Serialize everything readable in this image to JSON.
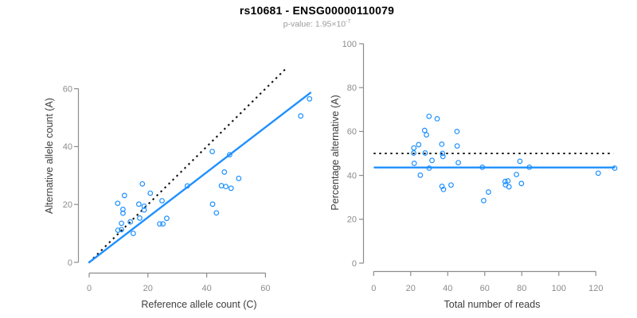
{
  "figure": {
    "title": "rs10681 - ENSG00000110079",
    "subtitle": {
      "prefix": "p-value: 1.95×10",
      "exponent": "-7"
    }
  },
  "colors": {
    "accent_blue": "#1E90FF",
    "dotted_black": "#111111",
    "axis_gray": "#8c8c8c",
    "tick_label_gray": "#8c8c8c",
    "axis_title_gray": "#3d3d3d",
    "subtitle_gray": "#9b9b9b"
  },
  "chart_data": [
    {
      "id": "allele-count-scatter",
      "type": "scatter",
      "xlabel": "Reference allele count (C)",
      "ylabel": "Alternative allele count (A)",
      "x_ticks": [
        0,
        20,
        40,
        60
      ],
      "y_ticks": [
        0,
        20,
        40,
        60
      ],
      "xlim": [
        0,
        76
      ],
      "ylim": [
        0,
        68
      ],
      "grid": false,
      "points": [
        [
          75.0,
          56.5
        ],
        [
          72.0,
          50.6
        ],
        [
          41.9,
          38.3
        ],
        [
          47.8,
          37.2
        ],
        [
          46.0,
          31.2
        ],
        [
          50.9,
          29.0
        ],
        [
          45.0,
          26.5
        ],
        [
          46.5,
          26.2
        ],
        [
          48.3,
          25.6
        ],
        [
          33.4,
          26.4
        ],
        [
          18.1,
          27.1
        ],
        [
          42.0,
          20.1
        ],
        [
          43.3,
          17.1
        ],
        [
          12.0,
          23.1
        ],
        [
          20.8,
          23.9
        ],
        [
          9.7,
          20.4
        ],
        [
          16.9,
          20.1
        ],
        [
          24.8,
          21.3
        ],
        [
          18.7,
          19.4
        ],
        [
          18.7,
          18.1
        ],
        [
          11.5,
          18.3
        ],
        [
          11.5,
          17.0
        ],
        [
          17.2,
          15.3
        ],
        [
          26.4,
          15.2
        ],
        [
          11.0,
          13.5
        ],
        [
          14.0,
          14.0
        ],
        [
          24.0,
          13.3
        ],
        [
          25.1,
          13.3
        ],
        [
          9.8,
          11.1
        ],
        [
          11.0,
          11.3
        ],
        [
          15.0,
          10.0
        ]
      ],
      "lines": [
        {
          "name": "identity-line",
          "style": "dotted",
          "color": "#111111",
          "from": [
            0,
            0
          ],
          "to": [
            67.5,
            67.5
          ]
        },
        {
          "name": "fit-line",
          "style": "solid",
          "color": "#1E90FF",
          "from": [
            0,
            0
          ],
          "to": [
            75.3,
            58.6
          ]
        }
      ]
    },
    {
      "id": "percentage-alternative-scatter",
      "type": "scatter",
      "xlabel": "Total number of reads",
      "ylabel": "Percentage alternative (A)",
      "x_ticks": [
        0,
        20,
        40,
        60,
        80,
        100,
        120
      ],
      "y_ticks": [
        0,
        20,
        40,
        60,
        80,
        100
      ],
      "xlim": [
        0,
        131
      ],
      "ylim": [
        0,
        100
      ],
      "grid": false,
      "points": [
        [
          21.7,
          52.5
        ],
        [
          24.3,
          54.0
        ],
        [
          21.6,
          50.2
        ],
        [
          21.9,
          45.5
        ],
        [
          25.2,
          40.1
        ],
        [
          27.8,
          50.2
        ],
        [
          27.5,
          60.5
        ],
        [
          28.5,
          58.5
        ],
        [
          29.9,
          66.9
        ],
        [
          30.0,
          43.3
        ],
        [
          31.5,
          46.8
        ],
        [
          34.3,
          65.8
        ],
        [
          36.8,
          54.2
        ],
        [
          37.2,
          50.0
        ],
        [
          37.4,
          48.6
        ],
        [
          36.9,
          35.0
        ],
        [
          37.7,
          33.6
        ],
        [
          41.8,
          35.6
        ],
        [
          45.0,
          60.0
        ],
        [
          45.1,
          53.4
        ],
        [
          45.7,
          45.8
        ],
        [
          58.7,
          43.7
        ],
        [
          59.4,
          28.5
        ],
        [
          62.0,
          32.4
        ],
        [
          71.0,
          37.2
        ],
        [
          72.5,
          37.5
        ],
        [
          71.2,
          35.7
        ],
        [
          73.1,
          34.8
        ],
        [
          77.1,
          40.4
        ],
        [
          79.0,
          46.4
        ],
        [
          79.8,
          36.3
        ],
        [
          84.1,
          43.7
        ],
        [
          121.3,
          41.0
        ],
        [
          130.2,
          43.3
        ]
      ],
      "lines": [
        {
          "name": "expected-50pct-line",
          "style": "dotted",
          "color": "#111111",
          "from": [
            0,
            50
          ],
          "to": [
            129.5,
            50
          ]
        },
        {
          "name": "mean-percentage-line",
          "style": "solid",
          "color": "#1E90FF",
          "from": [
            0.5,
            43.6
          ],
          "to": [
            130,
            43.6
          ]
        }
      ]
    }
  ]
}
